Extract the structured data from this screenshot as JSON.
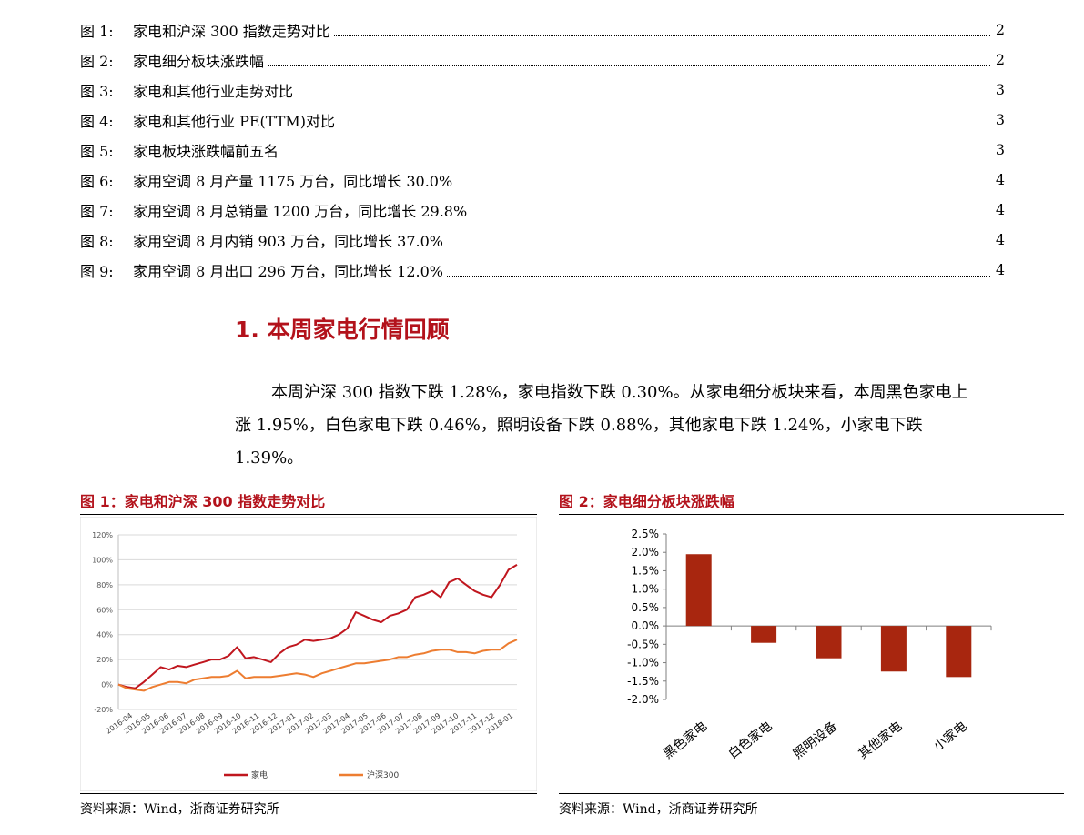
{
  "figure_list": [
    {
      "num": "图 1:",
      "title": "家电和沪深 300 指数走势对比",
      "page": "2"
    },
    {
      "num": "图 2:",
      "title": "家电细分板块涨跌幅",
      "page": "2"
    },
    {
      "num": "图 3:",
      "title": "家电和其他行业走势对比",
      "page": "3"
    },
    {
      "num": "图 4:",
      "title": "家电和其他行业 PE(TTM)对比",
      "page": "3"
    },
    {
      "num": "图 5:",
      "title": "家电板块涨跌幅前五名",
      "page": "3"
    },
    {
      "num": "图 6:",
      "title": "家用空调 8 月产量 1175 万台，同比增长 30.0%",
      "page": "4"
    },
    {
      "num": "图 7:",
      "title": "家用空调 8 月总销量 1200 万台，同比增长 29.8%",
      "page": "4"
    },
    {
      "num": "图 8:",
      "title": "家用空调 8 月内销 903 万台，同比增长 37.0%",
      "page": "4"
    },
    {
      "num": "图 9:",
      "title": "家用空调 8 月出口 296 万台，同比增长 12.0%",
      "page": "4"
    }
  ],
  "section": {
    "heading": "1. 本周家电行情回顾",
    "paragraph": "本周沪深 300 指数下跌 1.28%，家电指数下跌 0.30%。从家电细分板块来看，本周黑色家电上涨 1.95%，白色家电下跌 0.46%，照明设备下跌 0.88%，其他家电下跌 1.24%，小家电下跌 1.39%。"
  },
  "figure1": {
    "caption": "图 1：家电和沪深 300 指数走势对比",
    "source": "资料来源：Wind，浙商证券研究所"
  },
  "figure2": {
    "caption": "图 2：家电细分板块涨跌幅",
    "source": "资料来源：Wind，浙商证券研究所"
  },
  "chart_data": [
    {
      "type": "line",
      "y_ticks": [
        "120%",
        "100%",
        "80%",
        "60%",
        "40%",
        "20%",
        "0%",
        "-20%"
      ],
      "ylim": [
        -20,
        120
      ],
      "x_ticks": [
        "2016-04",
        "2016-05",
        "2016-06",
        "2016-07",
        "2016-08",
        "2016-09",
        "2016-10",
        "2016-11",
        "2016-12",
        "2017-01",
        "2017-02",
        "2017-03",
        "2017-04",
        "2017-05",
        "2017-06",
        "2017-07",
        "2017-08",
        "2017-09",
        "2017-10",
        "2017-11",
        "2017-12",
        "2018-01"
      ],
      "legend_position": "bottom",
      "series": [
        {
          "name": "家电",
          "color": "#c0161e",
          "values": [
            0,
            -2,
            -3,
            2,
            8,
            14,
            12,
            15,
            14,
            16,
            18,
            20,
            20,
            23,
            30,
            21,
            22,
            20,
            18,
            25,
            30,
            32,
            36,
            35,
            36,
            37,
            40,
            45,
            58,
            55,
            52,
            50,
            55,
            57,
            60,
            70,
            72,
            75,
            70,
            82,
            85,
            80,
            75,
            72,
            70,
            80,
            92,
            96
          ]
        },
        {
          "name": "沪深300",
          "color": "#ed7d31",
          "values": [
            0,
            -3,
            -4,
            -5,
            -2,
            0,
            2,
            2,
            1,
            4,
            5,
            6,
            6,
            7,
            11,
            5,
            6,
            6,
            6,
            7,
            8,
            9,
            8,
            6,
            9,
            11,
            13,
            15,
            17,
            17,
            18,
            19,
            20,
            22,
            22,
            24,
            25,
            27,
            28,
            28,
            26,
            26,
            25,
            27,
            28,
            28,
            33,
            36
          ]
        }
      ]
    },
    {
      "type": "bar",
      "categories": [
        "黑色家电",
        "白色家电",
        "照明设备",
        "其他家电",
        "小家电"
      ],
      "values": [
        1.95,
        -0.46,
        -0.88,
        -1.24,
        -1.39
      ],
      "y_ticks": [
        "2.5%",
        "2.0%",
        "1.5%",
        "1.0%",
        "0.5%",
        "0.0%",
        "-0.5%",
        "-1.0%",
        "-1.5%",
        "-2.0%"
      ],
      "ylim": [
        -2.0,
        2.5
      ],
      "color": "#a8260f"
    }
  ]
}
